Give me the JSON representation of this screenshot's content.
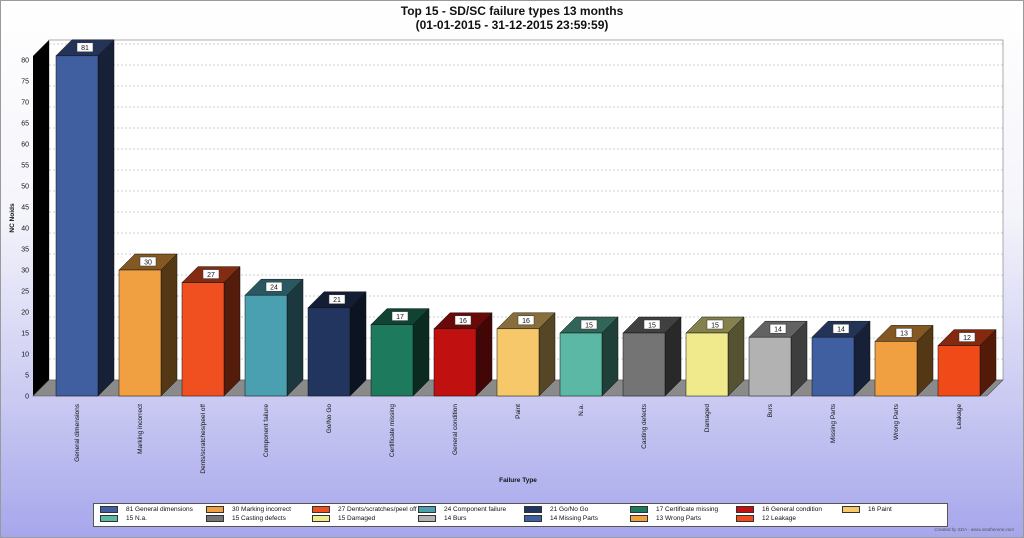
{
  "chart_data": {
    "type": "bar",
    "title": "Top 15 - SD/SC failure types 13 months",
    "subtitle": "(01-01-2015 - 31-12-2015 23:59:59)",
    "xlabel": "Failure Type",
    "ylabel": "NC Noids",
    "ylim": [
      0,
      80
    ],
    "yticks": [
      0,
      5,
      10,
      15,
      20,
      25,
      30,
      35,
      40,
      45,
      50,
      55,
      60,
      65,
      70,
      75,
      80
    ],
    "grid": true,
    "legend_position": "bottom",
    "categories": [
      "General dimensions",
      "Marking incorrect",
      "Dents/scratches/peel off",
      "Component failure",
      "Go/No Go",
      "Certificate missing",
      "General condition",
      "Paint",
      "N.a.",
      "Casting defects",
      "Damaged",
      "Burs",
      "Missing Parts",
      "Wrong Parts",
      "Leakage"
    ],
    "values": [
      81,
      30,
      27,
      24,
      21,
      17,
      16,
      16,
      15,
      15,
      15,
      14,
      14,
      13,
      12
    ],
    "colors": [
      "#3f5fa0",
      "#f0a040",
      "#f05020",
      "#4aa0b0",
      "#22355e",
      "#1e7a5c",
      "#c01010",
      "#f6c86a",
      "#5ab8a4",
      "#747474",
      "#f0ea8c",
      "#b2b2b2",
      "#3f5fa0",
      "#f0a040",
      "#f04a18"
    ],
    "legend": [
      "81 General dimensions",
      "30 Marking incorrect",
      "27 Dents/scratches/peel off",
      "24 Component failure",
      "21 Go/No Go",
      "17 Certificate missing",
      "16 General condition",
      "16 Paint",
      "15 N.a.",
      "15 Casting defects",
      "15 Damaged",
      "14 Burs",
      "14 Missing Parts",
      "13 Wrong Parts",
      "12 Leakage"
    ]
  },
  "credit": "Created by SDA - www.anotherone.com"
}
